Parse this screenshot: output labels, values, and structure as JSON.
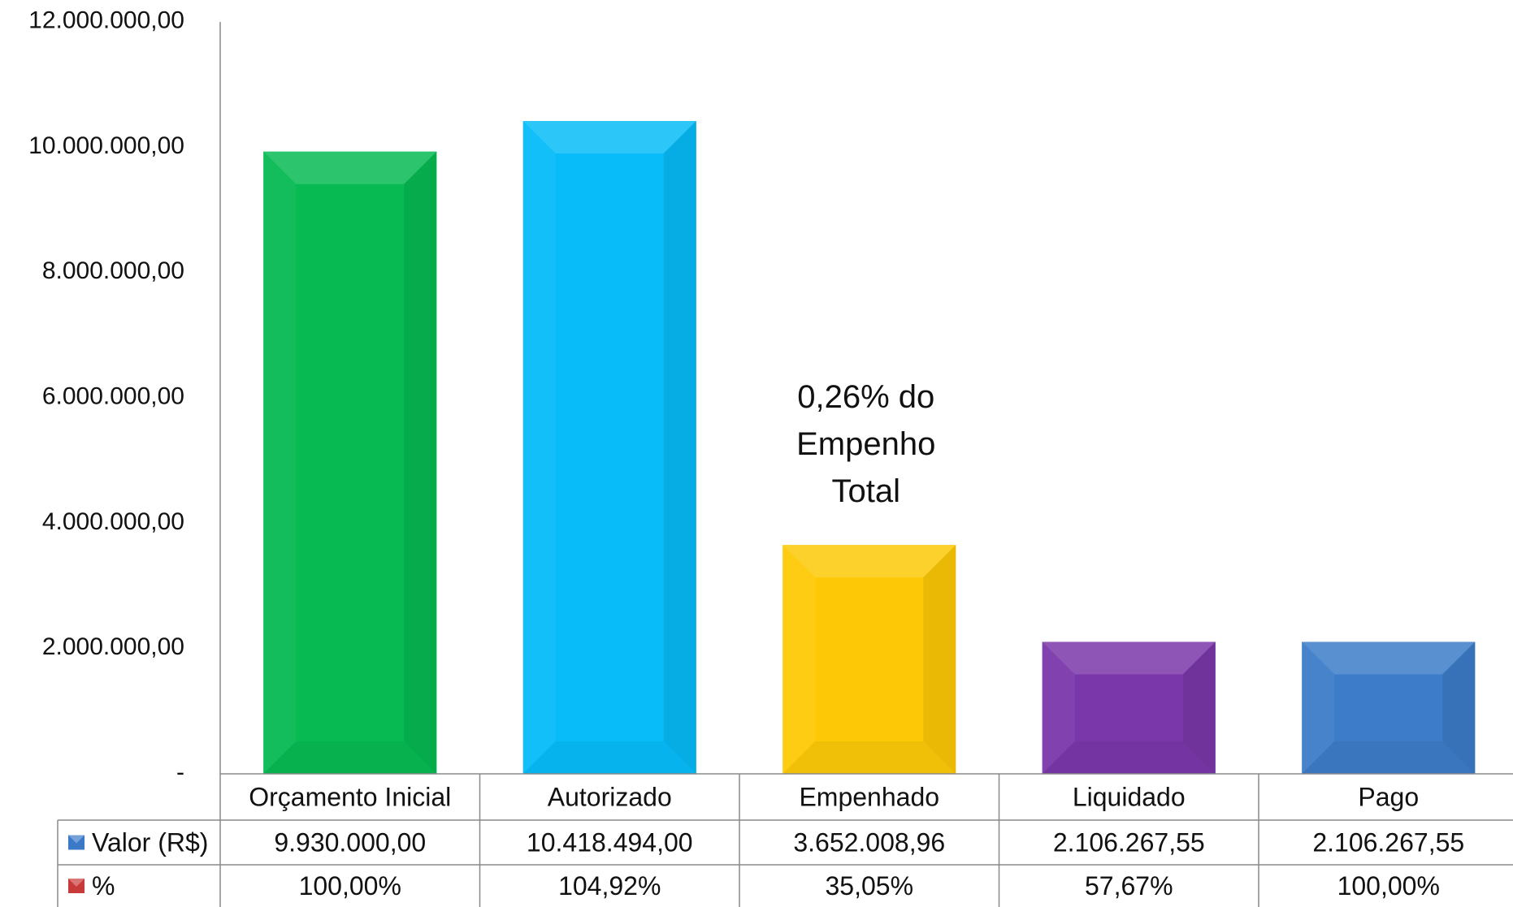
{
  "chart_data": {
    "type": "bar",
    "categories": [
      "Orçamento Inicial",
      "Autorizado",
      "Empenhado",
      "Liquidado",
      "Pago"
    ],
    "series": [
      {
        "name": "Valor (R$)",
        "values": [
          9930000.0,
          10418494.0,
          3652008.96,
          2106267.55,
          2106267.55
        ]
      },
      {
        "name": "%",
        "values": [
          100.0,
          104.92,
          35.05,
          57.67,
          100.0
        ]
      }
    ],
    "value_labels": [
      "9.930.000,00",
      "10.418.494,00",
      "3.652.008,96",
      "2.106.267,55",
      "2.106.267,55"
    ],
    "percent_labels": [
      "100,00%",
      "104,92%",
      "35,05%",
      "57,67%",
      "100,00%"
    ],
    "ylim": [
      0,
      12000000
    ],
    "yticks": [
      0,
      2000000,
      4000000,
      6000000,
      8000000,
      10000000,
      12000000
    ],
    "ytick_labels": [
      "-",
      "2.000.000,00",
      "4.000.000,00",
      "6.000.000,00",
      "8.000.000,00",
      "10.000.000,00",
      "12.000.000,00"
    ],
    "bar_colors": [
      "#07BA52",
      "#07BCF8",
      "#FDC907",
      "#7A37AA",
      "#3C7CC8"
    ],
    "legend_colors": [
      "#3A78C8",
      "#C83A3A"
    ],
    "annotation": {
      "lines": [
        "0,26% do",
        "Empenho",
        "Total"
      ],
      "category": "Empenhado"
    },
    "grid": false,
    "legend": "data-table",
    "title": "",
    "xlabel": "",
    "ylabel": ""
  }
}
